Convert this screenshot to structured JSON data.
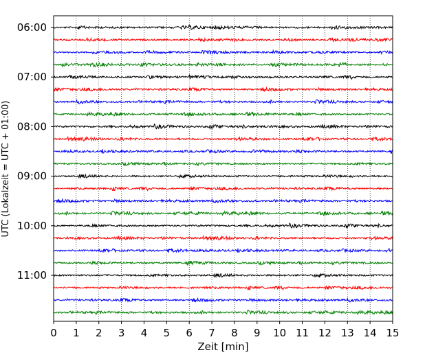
{
  "chart_data": {
    "type": "line",
    "title": "",
    "xlabel": "Zeit  [min]",
    "ylabel": "UTC (Lokalzeit = UTC + 01:00)",
    "xlim": [
      0,
      15
    ],
    "x_ticks": [
      "0",
      "1",
      "2",
      "3",
      "4",
      "5",
      "6",
      "7",
      "8",
      "9",
      "10",
      "11",
      "12",
      "13",
      "14",
      "15"
    ],
    "y_ticks": [
      "06:00",
      "07:00",
      "08:00",
      "09:00",
      "10:00",
      "11:00"
    ],
    "grid": "vertical-dotted",
    "legend": "none",
    "trace_colors": [
      "#000000",
      "#ff0000",
      "#0000ff",
      "#008000"
    ],
    "series": [
      {
        "start": "06:00",
        "color": "#000000"
      },
      {
        "start": "06:15",
        "color": "#ff0000"
      },
      {
        "start": "06:30",
        "color": "#0000ff"
      },
      {
        "start": "06:45",
        "color": "#008000"
      },
      {
        "start": "07:00",
        "color": "#000000"
      },
      {
        "start": "07:15",
        "color": "#ff0000"
      },
      {
        "start": "07:30",
        "color": "#0000ff"
      },
      {
        "start": "07:45",
        "color": "#008000"
      },
      {
        "start": "08:00",
        "color": "#000000"
      },
      {
        "start": "08:15",
        "color": "#ff0000"
      },
      {
        "start": "08:30",
        "color": "#0000ff"
      },
      {
        "start": "08:45",
        "color": "#008000"
      },
      {
        "start": "09:00",
        "color": "#000000"
      },
      {
        "start": "09:15",
        "color": "#ff0000"
      },
      {
        "start": "09:30",
        "color": "#0000ff"
      },
      {
        "start": "09:45",
        "color": "#008000"
      },
      {
        "start": "10:00",
        "color": "#000000"
      },
      {
        "start": "10:15",
        "color": "#ff0000"
      },
      {
        "start": "10:30",
        "color": "#0000ff"
      },
      {
        "start": "10:45",
        "color": "#008000"
      },
      {
        "start": "11:00",
        "color": "#000000"
      },
      {
        "start": "11:15",
        "color": "#ff0000"
      },
      {
        "start": "11:30",
        "color": "#0000ff"
      },
      {
        "start": "11:45",
        "color": "#008000"
      }
    ]
  }
}
